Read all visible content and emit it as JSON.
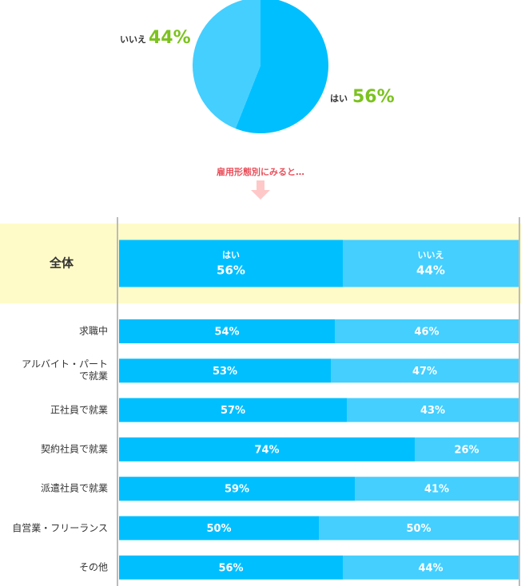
{
  "chart_data": [
    {
      "type": "pie",
      "categories": [
        "はい",
        "いいえ"
      ],
      "values": [
        56,
        44
      ],
      "value_labels": [
        "56%",
        "44%"
      ],
      "colors": [
        "#00bfff",
        "#44cfff"
      ],
      "annotation": "雇用形態別にみると…"
    },
    {
      "type": "bar",
      "orientation": "horizontal",
      "stacked": true,
      "categories": [
        "全体",
        "求職中",
        "アルバイト・パート\nで就業",
        "正社員で就業",
        "契約社員で就業",
        "派遣社員で就業",
        "自営業・フリーランス",
        "その他"
      ],
      "series": [
        {
          "name": "はい",
          "color": "#00bfff",
          "values": [
            56,
            54,
            53,
            57,
            74,
            59,
            50,
            56
          ],
          "value_labels": [
            "56%",
            "54%",
            "53%",
            "57%",
            "74%",
            "59%",
            "50%",
            "56%"
          ]
        },
        {
          "name": "いいえ",
          "color": "#44cfff",
          "values": [
            44,
            46,
            47,
            43,
            26,
            41,
            50,
            44
          ],
          "value_labels": [
            "44%",
            "46%",
            "47%",
            "43%",
            "26%",
            "41%",
            "50%",
            "44%"
          ]
        }
      ],
      "xlim": [
        0,
        100
      ]
    }
  ]
}
